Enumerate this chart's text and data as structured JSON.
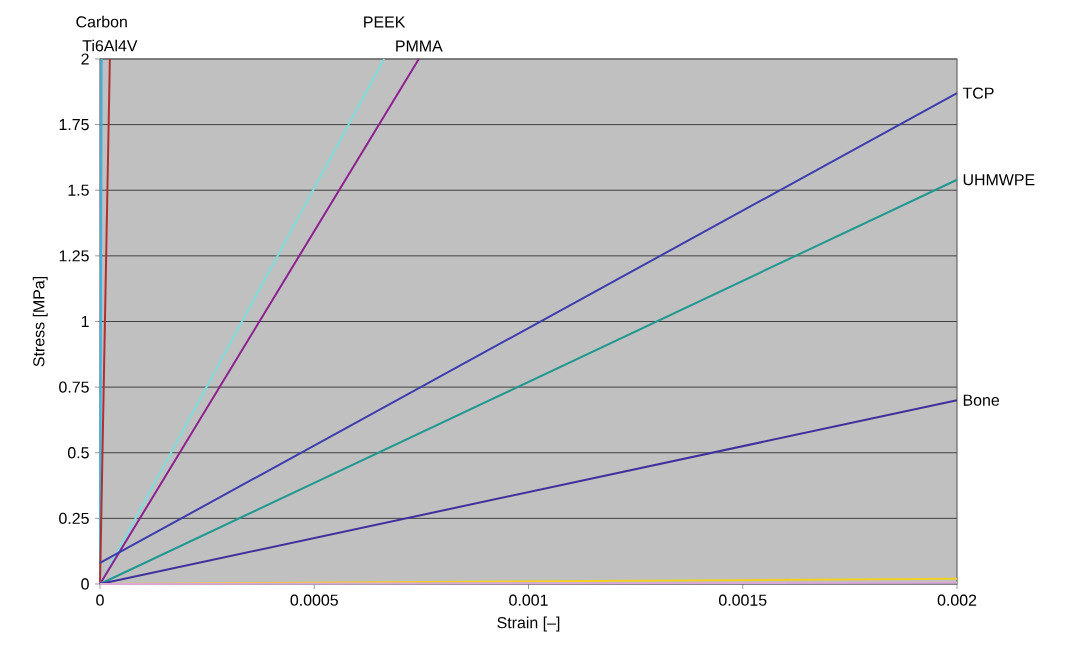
{
  "chart_data": {
    "type": "line",
    "xlabel": "Strain [–]",
    "ylabel": "Stress [MPa]",
    "xlim": [
      0,
      0.002
    ],
    "ylim": [
      0,
      2
    ],
    "xticks": [
      0,
      0.0005,
      0.001,
      0.0015,
      0.002
    ],
    "yticks": [
      0,
      0.25,
      0.5,
      0.75,
      1,
      1.25,
      1.5,
      1.75,
      2
    ],
    "grid": "y",
    "series": [
      {
        "name": "Carbon",
        "color": "#3cb4e6",
        "x": [
          0,
          4e-06
        ],
        "values": [
          0,
          2
        ]
      },
      {
        "name": "Ti6Al4V",
        "color": "#b03030",
        "x": [
          0,
          2.3e-05
        ],
        "values": [
          0,
          2
        ]
      },
      {
        "name": "PEEK",
        "color": "#80dcdc",
        "x": [
          0,
          0.000663
        ],
        "values": [
          0,
          2
        ]
      },
      {
        "name": "PMMA",
        "color": "#8c2090",
        "x": [
          0,
          0.000744
        ],
        "values": [
          0,
          2
        ]
      },
      {
        "name": "TCP",
        "color": "#3c3cac",
        "x": [
          0,
          0.002
        ],
        "values": [
          0.08,
          1.87
        ]
      },
      {
        "name": "UHMWPE",
        "color": "#209890",
        "x": [
          0,
          0.002
        ],
        "values": [
          0,
          1.54
        ]
      },
      {
        "name": "Bone",
        "color": "#40309c",
        "x": [
          0,
          0.002
        ],
        "values": [
          0,
          0.7
        ]
      },
      {
        "color": "#f0d020",
        "x": [
          0,
          0.002
        ],
        "values": [
          0,
          0.02
        ]
      },
      {
        "color": "#d8a8d8",
        "x": [
          0,
          0.002
        ],
        "values": [
          0,
          0.005
        ]
      }
    ]
  }
}
